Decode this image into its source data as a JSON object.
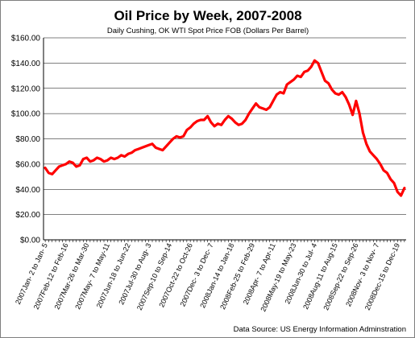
{
  "chart_data": {
    "type": "line",
    "title": "Oil Price by Week, 2007-2008",
    "subtitle": "Daily Cushing, OK WTI Spot Price FOB (Dollars Per Barrel)",
    "source": "Data Source: US Energy Information Adminstration",
    "ylim": [
      0,
      160
    ],
    "yticks": [
      0,
      20,
      40,
      60,
      80,
      100,
      120,
      140,
      160
    ],
    "ytick_labels": [
      "$0.00",
      "$20.00",
      "$40.00",
      "$60.00",
      "$80.00",
      "$100.00",
      "$120.00",
      "$140.00",
      "$160.00"
    ],
    "grid": true,
    "line_color": "#ff0000",
    "x_tick_labels": [
      "2007Jan- 2 to Jan- 5",
      "2007Feb-12 to Feb-16",
      "2007Mar-26 to Mar-30",
      "2007May- 7 to May-11",
      "2007Jun-18 to Jun-22",
      "2007Jul-30 to Aug- 3",
      "2007Sep-10 to Sep-14",
      "2007Oct-22 to Oct-26",
      "2007Dec- 3 to Dec- 7",
      "2008Jan-14 to Jan-18",
      "2008Feb-25 to Feb-29",
      "2008Apr- 7 to Apr-11",
      "2008May-19 to May-23",
      "2008Jun-30 to Jul- 4",
      "2008Aug-11 to Aug-15",
      "2008Sep-22 to Sep-26",
      "2008Nov- 3 to Nov- 7",
      "2008Dec-15 to Dec-19"
    ],
    "x_tick_positions": [
      1,
      7,
      13,
      19,
      25,
      31,
      37,
      43,
      49,
      55,
      61,
      67,
      73,
      79,
      85,
      91,
      97,
      103
    ],
    "series": [
      {
        "x": [
          1,
          2,
          3,
          4,
          5,
          6,
          7,
          8,
          9,
          10,
          11,
          12,
          13,
          14,
          15,
          16,
          17,
          18,
          19,
          20,
          21,
          22,
          23,
          24,
          25,
          26,
          27,
          28,
          29,
          30,
          31,
          32,
          33,
          34,
          35,
          36,
          37,
          38,
          39,
          40,
          41,
          42,
          43,
          44,
          45,
          46,
          47,
          48,
          49,
          50,
          51,
          52,
          53,
          54,
          55,
          56,
          57,
          58,
          59,
          60,
          61,
          62,
          63,
          64,
          65,
          66,
          67,
          68,
          69,
          70,
          71,
          72,
          73,
          74,
          75,
          76,
          77,
          78,
          79,
          80,
          81,
          82,
          83,
          84,
          85,
          86,
          87,
          88,
          89,
          90,
          91,
          92,
          93,
          94,
          95,
          96,
          97,
          98,
          99,
          100,
          101,
          102,
          103,
          104,
          105
        ],
        "values": [
          57,
          53,
          52,
          55,
          58,
          59,
          60,
          62,
          61,
          58,
          59,
          64,
          65,
          62,
          63,
          65,
          64,
          62,
          63,
          65,
          64,
          65,
          67,
          66,
          68,
          69,
          71,
          72,
          73,
          74,
          75,
          76,
          73,
          72,
          71,
          74,
          77,
          80,
          82,
          81,
          82,
          87,
          89,
          92,
          94,
          95,
          95,
          98,
          93,
          90,
          92,
          91,
          95,
          98,
          96,
          93,
          91,
          92,
          95,
          100,
          104,
          108,
          105,
          104,
          103,
          105,
          110,
          115,
          117,
          116,
          123,
          125,
          127,
          130,
          129,
          133,
          134,
          137,
          142,
          140,
          133,
          126,
          124,
          119,
          116,
          115,
          117,
          113,
          107,
          99,
          110,
          100,
          85,
          76,
          70,
          67,
          64,
          60,
          55,
          53,
          48,
          45,
          38,
          35,
          41
        ]
      }
    ]
  }
}
